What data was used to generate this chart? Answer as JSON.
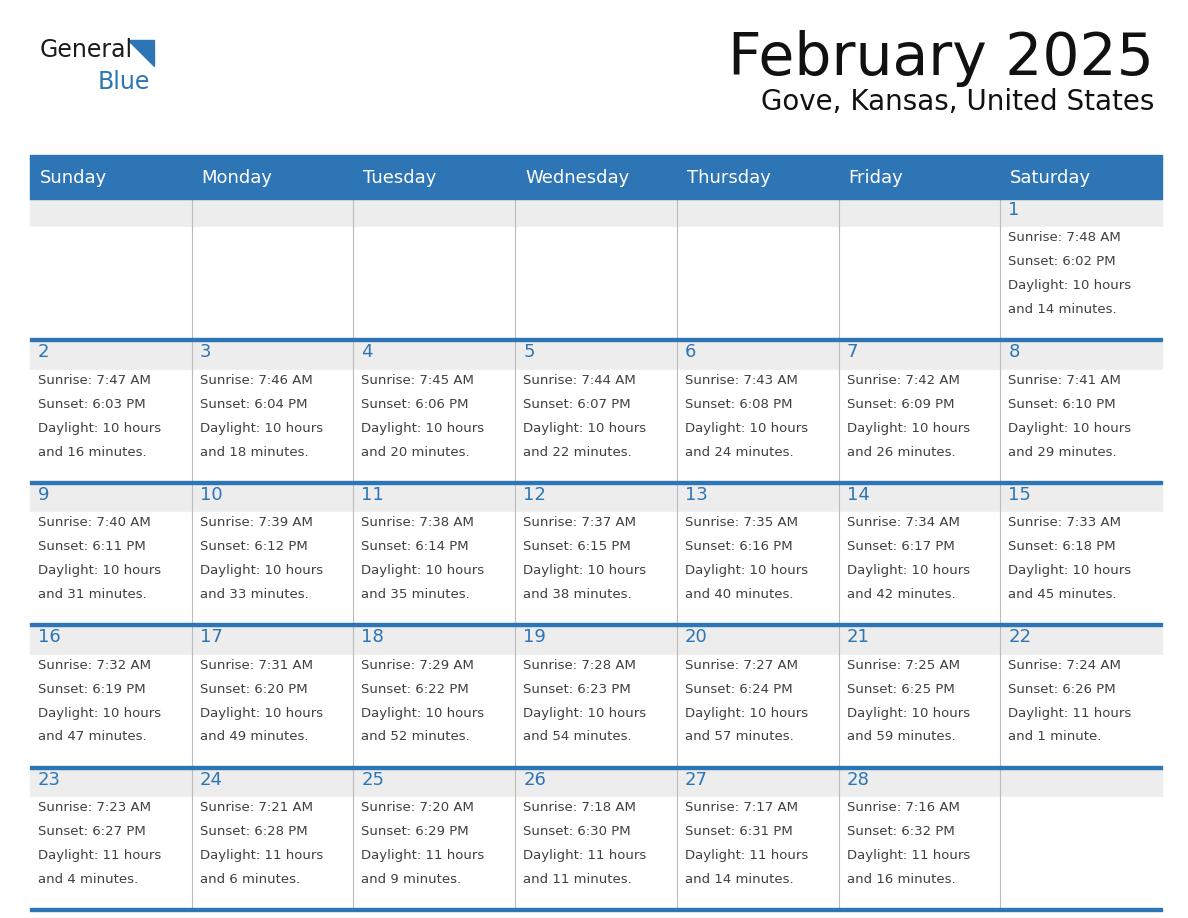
{
  "title": "February 2025",
  "subtitle": "Gove, Kansas, United States",
  "header_bg": "#2E75B6",
  "header_text_color": "#FFFFFF",
  "cell_top_bg": "#EDEDED",
  "cell_body_bg": "#FFFFFF",
  "border_color": "#2E75B6",
  "inner_border_color": "#CCCCCC",
  "day_number_color": "#2E75B6",
  "info_text_color": "#404040",
  "days_of_week": [
    "Sunday",
    "Monday",
    "Tuesday",
    "Wednesday",
    "Thursday",
    "Friday",
    "Saturday"
  ],
  "calendar_data": [
    [
      null,
      null,
      null,
      null,
      null,
      null,
      {
        "day": "1",
        "sunrise": "7:48 AM",
        "sunset": "6:02 PM",
        "daylight1": "10 hours",
        "daylight2": "and 14 minutes."
      }
    ],
    [
      {
        "day": "2",
        "sunrise": "7:47 AM",
        "sunset": "6:03 PM",
        "daylight1": "10 hours",
        "daylight2": "and 16 minutes."
      },
      {
        "day": "3",
        "sunrise": "7:46 AM",
        "sunset": "6:04 PM",
        "daylight1": "10 hours",
        "daylight2": "and 18 minutes."
      },
      {
        "day": "4",
        "sunrise": "7:45 AM",
        "sunset": "6:06 PM",
        "daylight1": "10 hours",
        "daylight2": "and 20 minutes."
      },
      {
        "day": "5",
        "sunrise": "7:44 AM",
        "sunset": "6:07 PM",
        "daylight1": "10 hours",
        "daylight2": "and 22 minutes."
      },
      {
        "day": "6",
        "sunrise": "7:43 AM",
        "sunset": "6:08 PM",
        "daylight1": "10 hours",
        "daylight2": "and 24 minutes."
      },
      {
        "day": "7",
        "sunrise": "7:42 AM",
        "sunset": "6:09 PM",
        "daylight1": "10 hours",
        "daylight2": "and 26 minutes."
      },
      {
        "day": "8",
        "sunrise": "7:41 AM",
        "sunset": "6:10 PM",
        "daylight1": "10 hours",
        "daylight2": "and 29 minutes."
      }
    ],
    [
      {
        "day": "9",
        "sunrise": "7:40 AM",
        "sunset": "6:11 PM",
        "daylight1": "10 hours",
        "daylight2": "and 31 minutes."
      },
      {
        "day": "10",
        "sunrise": "7:39 AM",
        "sunset": "6:12 PM",
        "daylight1": "10 hours",
        "daylight2": "and 33 minutes."
      },
      {
        "day": "11",
        "sunrise": "7:38 AM",
        "sunset": "6:14 PM",
        "daylight1": "10 hours",
        "daylight2": "and 35 minutes."
      },
      {
        "day": "12",
        "sunrise": "7:37 AM",
        "sunset": "6:15 PM",
        "daylight1": "10 hours",
        "daylight2": "and 38 minutes."
      },
      {
        "day": "13",
        "sunrise": "7:35 AM",
        "sunset": "6:16 PM",
        "daylight1": "10 hours",
        "daylight2": "and 40 minutes."
      },
      {
        "day": "14",
        "sunrise": "7:34 AM",
        "sunset": "6:17 PM",
        "daylight1": "10 hours",
        "daylight2": "and 42 minutes."
      },
      {
        "day": "15",
        "sunrise": "7:33 AM",
        "sunset": "6:18 PM",
        "daylight1": "10 hours",
        "daylight2": "and 45 minutes."
      }
    ],
    [
      {
        "day": "16",
        "sunrise": "7:32 AM",
        "sunset": "6:19 PM",
        "daylight1": "10 hours",
        "daylight2": "and 47 minutes."
      },
      {
        "day": "17",
        "sunrise": "7:31 AM",
        "sunset": "6:20 PM",
        "daylight1": "10 hours",
        "daylight2": "and 49 minutes."
      },
      {
        "day": "18",
        "sunrise": "7:29 AM",
        "sunset": "6:22 PM",
        "daylight1": "10 hours",
        "daylight2": "and 52 minutes."
      },
      {
        "day": "19",
        "sunrise": "7:28 AM",
        "sunset": "6:23 PM",
        "daylight1": "10 hours",
        "daylight2": "and 54 minutes."
      },
      {
        "day": "20",
        "sunrise": "7:27 AM",
        "sunset": "6:24 PM",
        "daylight1": "10 hours",
        "daylight2": "and 57 minutes."
      },
      {
        "day": "21",
        "sunrise": "7:25 AM",
        "sunset": "6:25 PM",
        "daylight1": "10 hours",
        "daylight2": "and 59 minutes."
      },
      {
        "day": "22",
        "sunrise": "7:24 AM",
        "sunset": "6:26 PM",
        "daylight1": "11 hours",
        "daylight2": "and 1 minute."
      }
    ],
    [
      {
        "day": "23",
        "sunrise": "7:23 AM",
        "sunset": "6:27 PM",
        "daylight1": "11 hours",
        "daylight2": "and 4 minutes."
      },
      {
        "day": "24",
        "sunrise": "7:21 AM",
        "sunset": "6:28 PM",
        "daylight1": "11 hours",
        "daylight2": "and 6 minutes."
      },
      {
        "day": "25",
        "sunrise": "7:20 AM",
        "sunset": "6:29 PM",
        "daylight1": "11 hours",
        "daylight2": "and 9 minutes."
      },
      {
        "day": "26",
        "sunrise": "7:18 AM",
        "sunset": "6:30 PM",
        "daylight1": "11 hours",
        "daylight2": "and 11 minutes."
      },
      {
        "day": "27",
        "sunrise": "7:17 AM",
        "sunset": "6:31 PM",
        "daylight1": "11 hours",
        "daylight2": "and 14 minutes."
      },
      {
        "day": "28",
        "sunrise": "7:16 AM",
        "sunset": "6:32 PM",
        "daylight1": "11 hours",
        "daylight2": "and 16 minutes."
      },
      null
    ]
  ],
  "logo_general_color": "#1a1a1a",
  "logo_blue_color": "#2E75B6",
  "logo_triangle_color": "#2E75B6"
}
